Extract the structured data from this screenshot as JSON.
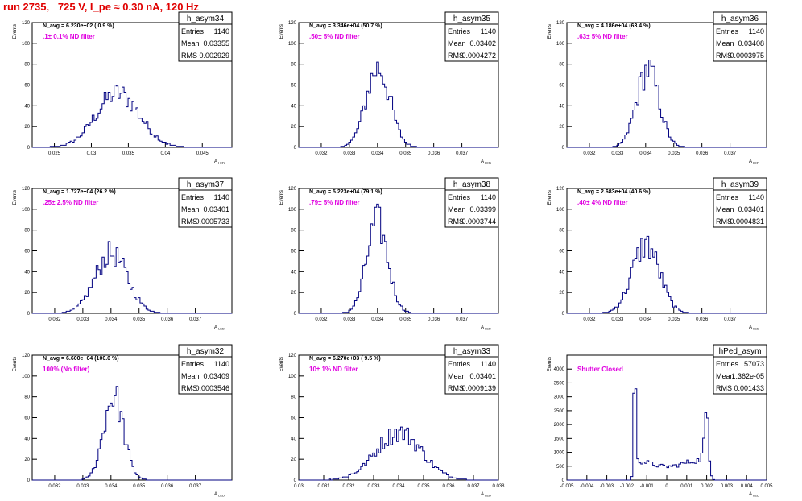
{
  "page_title": "run 2735,   725 V, I_pe ≈ 0.30 nA, 120 Hz",
  "colors": {
    "title": "#e00000",
    "annotation": "#e000e0",
    "histogram": "#000080",
    "axis": "#000000"
  },
  "chart_data": [
    {
      "type": "bar",
      "name": "h_asym34",
      "stats": {
        "entries_label": "Entries",
        "entries": "1140",
        "mean_label": "Mean",
        "mean": "0.03355",
        "rms_label": "RMS",
        "rms": "0.002929"
      },
      "navg": "N_avg = 6.230e+02 ( 0.9 %)",
      "filter": ".1± 0.1% ND filter",
      "ylabel": "Events",
      "xlabel": "A_LED",
      "xlim": [
        0.022,
        0.049
      ],
      "ylim": [
        0,
        120
      ],
      "xticks": [
        0.025,
        0.03,
        0.035,
        0.04,
        0.045
      ],
      "xticklabels": [
        "0.025",
        "0.03",
        "0.035",
        "0.04",
        "0.045"
      ],
      "yticks": [
        0,
        20,
        40,
        60,
        80,
        100,
        120
      ],
      "mean_value": 0.03355,
      "rms_value": 0.002929,
      "peak": 52
    },
    {
      "type": "bar",
      "name": "h_asym35",
      "stats": {
        "entries_label": "Entries",
        "entries": "1140",
        "mean_label": "Mean",
        "mean": "0.03402",
        "rms_label": "RMS",
        "rms": "0.0004272"
      },
      "navg": "N_avg = 3.346e+04 (50.7 %)",
      "filter": ".50± 5% ND filter",
      "ylabel": "Events",
      "xlabel": "A_LED",
      "xlim": [
        0.0312,
        0.0383
      ],
      "ylim": [
        0,
        120
      ],
      "xticks": [
        0.032,
        0.033,
        0.034,
        0.035,
        0.036,
        0.037
      ],
      "xticklabels": [
        "0.032",
        "0.033",
        "0.034",
        "0.035",
        "0.036",
        "0.037"
      ],
      "yticks": [
        0,
        20,
        40,
        60,
        80,
        100,
        120
      ],
      "mean_value": 0.03402,
      "rms_value": 0.0004272,
      "peak": 76
    },
    {
      "type": "bar",
      "name": "h_asym36",
      "stats": {
        "entries_label": "Entries",
        "entries": "1140",
        "mean_label": "Mean",
        "mean": "0.03408",
        "rms_label": "RMS",
        "rms": "0.0003975"
      },
      "navg": "N_avg = 4.186e+04 (63.4 %)",
      "filter": ".63± 5% ND filter",
      "ylabel": "Events",
      "xlabel": "A_LED",
      "xlim": [
        0.0312,
        0.0383
      ],
      "ylim": [
        0,
        120
      ],
      "xticks": [
        0.032,
        0.033,
        0.034,
        0.035,
        0.036,
        0.037
      ],
      "xticklabels": [
        "0.032",
        "0.033",
        "0.034",
        "0.035",
        "0.036",
        "0.037"
      ],
      "yticks": [
        0,
        20,
        40,
        60,
        80,
        100,
        120
      ],
      "mean_value": 0.03408,
      "rms_value": 0.0003975,
      "peak": 75
    },
    {
      "type": "bar",
      "name": "h_asym37",
      "stats": {
        "entries_label": "Entries",
        "entries": "1140",
        "mean_label": "Mean",
        "mean": "0.03401",
        "rms_label": "RMS",
        "rms": "0.0005733"
      },
      "navg": "N_avg = 1.727e+04 (26.2 %)",
      "filter": ".25± 2.5% ND filter",
      "ylabel": "Events",
      "xlabel": "A_LED",
      "xlim": [
        0.0312,
        0.0383
      ],
      "ylim": [
        0,
        120
      ],
      "xticks": [
        0.032,
        0.033,
        0.034,
        0.035,
        0.036,
        0.037
      ],
      "xticklabels": [
        "0.032",
        "0.033",
        "0.034",
        "0.035",
        "0.036",
        "0.037"
      ],
      "yticks": [
        0,
        20,
        40,
        60,
        80,
        100,
        120
      ],
      "mean_value": 0.03401,
      "rms_value": 0.0005733,
      "peak": 57
    },
    {
      "type": "bar",
      "name": "h_asym38",
      "stats": {
        "entries_label": "Entries",
        "entries": "1140",
        "mean_label": "Mean",
        "mean": "0.03399",
        "rms_label": "RMS",
        "rms": "0.0003744"
      },
      "navg": "N_avg = 5.223e+04 (79.1 %)",
      "filter": ".79± 5% ND filter",
      "ylabel": "Events",
      "xlabel": "A_LED",
      "xlim": [
        0.0312,
        0.0383
      ],
      "ylim": [
        0,
        120
      ],
      "xticks": [
        0.032,
        0.033,
        0.034,
        0.035,
        0.036,
        0.037
      ],
      "xticklabels": [
        "0.032",
        "0.033",
        "0.034",
        "0.035",
        "0.036",
        "0.037"
      ],
      "yticks": [
        0,
        20,
        40,
        60,
        80,
        100,
        120
      ],
      "mean_value": 0.03399,
      "rms_value": 0.0003744,
      "peak": 87
    },
    {
      "type": "bar",
      "name": "h_asym39",
      "stats": {
        "entries_label": "Entries",
        "entries": "1140",
        "mean_label": "Mean",
        "mean": "0.03401",
        "rms_label": "RMS",
        "rms": "0.0004831"
      },
      "navg": "N_avg = 2.683e+04 (40.6 %)",
      "filter": ".40± 4% ND filter",
      "ylabel": "Events",
      "xlabel": "A_LED",
      "xlim": [
        0.0312,
        0.0383
      ],
      "ylim": [
        0,
        120
      ],
      "xticks": [
        0.032,
        0.033,
        0.034,
        0.035,
        0.036,
        0.037
      ],
      "xticklabels": [
        "0.032",
        "0.033",
        "0.034",
        "0.035",
        "0.036",
        "0.037"
      ],
      "yticks": [
        0,
        20,
        40,
        60,
        80,
        100,
        120
      ],
      "mean_value": 0.03401,
      "rms_value": 0.0004831,
      "peak": 66
    },
    {
      "type": "bar",
      "name": "h_asym32",
      "stats": {
        "entries_label": "Entries",
        "entries": "1140",
        "mean_label": "Mean",
        "mean": "0.03409",
        "rms_label": "RMS",
        "rms": "0.0003546"
      },
      "navg": "N_avg = 6.600e+04 (100.0 %)",
      "filter": "100% (No filter)",
      "ylabel": "Events",
      "xlabel": "A_LED",
      "xlim": [
        0.0312,
        0.0383
      ],
      "ylim": [
        0,
        120
      ],
      "xticks": [
        0.032,
        0.033,
        0.034,
        0.035,
        0.036,
        0.037
      ],
      "xticklabels": [
        "0.032",
        "0.033",
        "0.034",
        "0.035",
        "0.036",
        "0.037"
      ],
      "yticks": [
        0,
        20,
        40,
        60,
        80,
        100,
        120
      ],
      "mean_value": 0.03409,
      "rms_value": 0.0003546,
      "peak": 81
    },
    {
      "type": "bar",
      "name": "h_asym33",
      "stats": {
        "entries_label": "Entries",
        "entries": "1140",
        "mean_label": "Mean",
        "mean": "0.03401",
        "rms_label": "RMS",
        "rms": "0.0009139"
      },
      "navg": "N_avg = 6.270e+03 ( 9.5 %)",
      "filter": "10± 1% ND filter",
      "ylabel": "Events",
      "xlabel": "A_LED",
      "xlim": [
        0.03,
        0.038
      ],
      "ylim": [
        0,
        120
      ],
      "xticks": [
        0.03,
        0.031,
        0.032,
        0.033,
        0.034,
        0.035,
        0.036,
        0.037,
        0.038
      ],
      "xticklabels": [
        "0.03",
        "0.031",
        "0.032",
        "0.033",
        "0.034",
        "0.035",
        "0.036",
        "0.037",
        "0.038"
      ],
      "yticks": [
        0,
        20,
        40,
        60,
        80,
        100,
        120
      ],
      "mean_value": 0.03401,
      "rms_value": 0.0009139,
      "peak": 46
    },
    {
      "type": "bar",
      "name": "hPed_asym",
      "stats": {
        "entries_label": "Entries",
        "entries": "57073",
        "mean_label": "Mean",
        "mean": "1.362e-05",
        "rms_label": "RMS",
        "rms": "0.001433"
      },
      "navg": "",
      "filter": "Shutter Closed",
      "ylabel": "Events",
      "xlabel": "A_LED",
      "xlim": [
        -0.005,
        0.005
      ],
      "ylim": [
        0,
        4500
      ],
      "xticks": [
        -0.005,
        -0.004,
        -0.003,
        -0.002,
        -0.001,
        0,
        0.001,
        0.002,
        0.003,
        0.004,
        0.005
      ],
      "xticklabels": [
        "-0.005",
        "-0.004",
        "-0.003",
        "-0.002",
        "-0.001",
        "0",
        "0.001",
        "0.002",
        "0.003",
        "0.004",
        "0.005"
      ],
      "yticks": [
        0,
        500,
        1000,
        1500,
        2000,
        2500,
        3000,
        3500,
        4000
      ],
      "bimodal": [
        {
          "center": -0.0016,
          "sigma": 6e-05,
          "height": 3200
        },
        {
          "center": 0.002,
          "sigma": 0.00012,
          "height": 1550
        }
      ],
      "background": 750
    }
  ]
}
